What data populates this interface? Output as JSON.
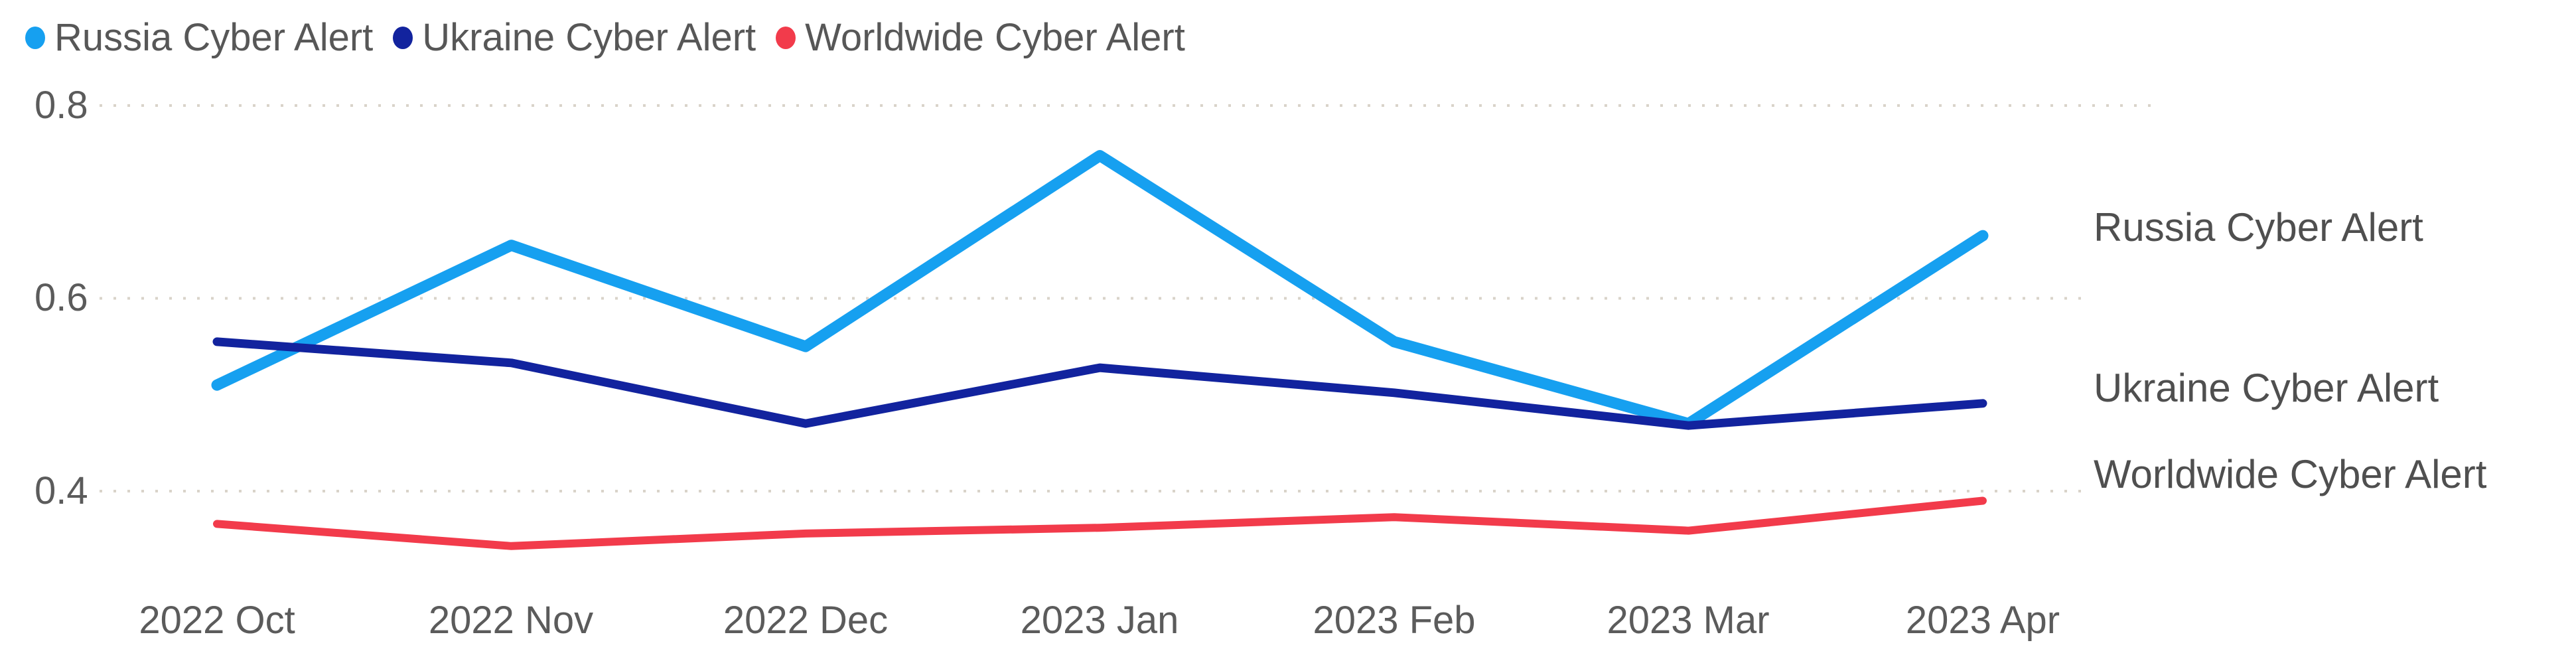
{
  "chart_data": {
    "type": "line",
    "title": "",
    "categories": [
      "2022 Oct",
      "2022 Nov",
      "2022 Dec",
      "2023 Jan",
      "2023 Feb",
      "2023 Mar",
      "2023 Apr"
    ],
    "series": [
      {
        "name": "Russia Cyber Alert",
        "color": "#16A0F0",
        "values": [
          0.51,
          0.655,
          0.55,
          0.748,
          0.555,
          0.47,
          0.665
        ]
      },
      {
        "name": "Ukraine Cyber Alert",
        "color": "#12239E",
        "values": [
          0.555,
          0.533,
          0.47,
          0.528,
          0.502,
          0.468,
          0.491
        ]
      },
      {
        "name": "Worldwide Cyber Alert",
        "color": "#F23B4B",
        "values": [
          0.366,
          0.343,
          0.356,
          0.362,
          0.373,
          0.359,
          0.39
        ]
      }
    ],
    "yticks": [
      "0.8",
      "0.6",
      "0.4"
    ],
    "ylim": [
      0.3,
      0.85
    ],
    "xlabel": "",
    "ylabel": "",
    "grid": "dotted-horizontal",
    "legend_position": "top-left",
    "series_end_labels": true,
    "background": "#ffffff",
    "gridline_color": "#D9D3CA",
    "text_color": "#5b5b5b"
  }
}
